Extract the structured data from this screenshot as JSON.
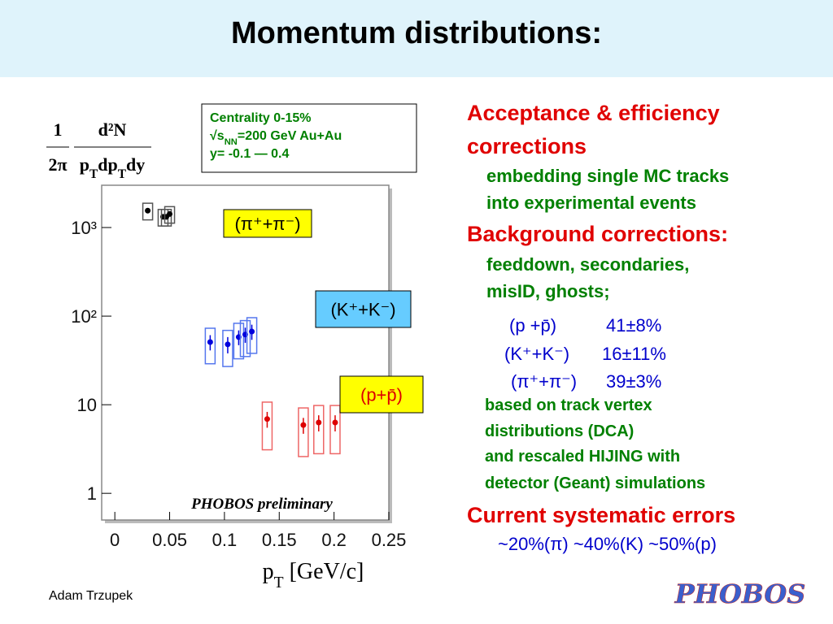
{
  "header": {
    "title": "Momentum distributions:"
  },
  "chart_data": {
    "type": "scatter",
    "ylabel": {
      "left": {
        "num": "1",
        "den": "2π"
      },
      "right": {
        "num": "d²N",
        "den": [
          {
            "text": "p"
          },
          {
            "text": "T",
            "sub": true
          },
          {
            "text": "dp"
          },
          {
            "text": "T",
            "sub": true
          },
          {
            "text": "dy"
          }
        ]
      }
    },
    "xlabel": [
      {
        "text": "p"
      },
      {
        "text": "T",
        "sub": true
      },
      {
        "text": " [GeV/c]"
      }
    ],
    "xlim": [
      -0.012,
      0.25
    ],
    "xticks": [
      0,
      0.05,
      0.1,
      0.15,
      0.2,
      0.25
    ],
    "ylim": [
      0.5,
      3000
    ],
    "log_y": true,
    "yticks": [
      1,
      10,
      {
        "value": 100,
        "label": "10²"
      },
      {
        "value": 1000,
        "label": "10³"
      }
    ],
    "series": [
      {
        "name": "(π⁺+π⁻)",
        "color": "#000000",
        "box_color": "#555555",
        "label_background": "#ffff00",
        "label_color": "#000000",
        "x": [
          0.03,
          0.044,
          0.047,
          0.05
        ],
        "values": [
          1550,
          1320,
          1320,
          1420
        ],
        "sys_errors": [
          330,
          280,
          280,
          300
        ]
      },
      {
        "name": "(K⁺+K⁻)",
        "color": "#0000dd",
        "box_color": "#5577ee",
        "label_background": "#66ccff",
        "label_color": "#000000",
        "x": [
          0.087,
          0.103,
          0.113,
          0.119,
          0.125
        ],
        "values": [
          51,
          48,
          58,
          62,
          67
        ],
        "errors": [
          10,
          10,
          11,
          12,
          13
        ],
        "sys_errors": [
          22,
          21,
          25,
          27,
          29
        ]
      },
      {
        "name": "(p+p̄)",
        "color": "#dd0000",
        "box_color": "#ee6666",
        "label_background": "#ffff00",
        "label_color": "#dd0000",
        "x": [
          0.139,
          0.172,
          0.186,
          0.201
        ],
        "values": [
          6.9,
          5.9,
          6.3,
          6.3
        ],
        "errors": [
          1.4,
          1.2,
          1.3,
          1.3
        ],
        "sys_errors": [
          3.8,
          3.3,
          3.5,
          3.5
        ]
      }
    ],
    "info": [
      [
        {
          "text": "Centrality 0-15%"
        }
      ],
      [
        {
          "text": "√s"
        },
        {
          "text": "NN",
          "sub": true
        },
        {
          "text": "=200 GeV Au+Au"
        }
      ],
      [
        {
          "text": "y= -0.1 — 0.4"
        }
      ]
    ],
    "annotation": "PHOBOS preliminary"
  },
  "panel": {
    "heading1": "Acceptance & efficiency corrections",
    "lines1": [
      "embedding single MC tracks",
      "into experimental events"
    ],
    "heading2": "Background corrections:",
    "lines2": [
      "feeddown, secondaries,",
      "misID, ghosts;"
    ],
    "table": [
      [
        "(p +p̄)",
        "41±8%"
      ],
      [
        "(K⁺+K⁻)",
        "16±11%"
      ],
      [
        "(π⁺+π⁻)",
        "39±3%"
      ]
    ],
    "notes": [
      "based on track vertex",
      "distributions (DCA)",
      "and rescaled HIJING with",
      "detector (Geant) simulations"
    ],
    "heading3": "Current systematic errors",
    "lines3": [
      "~20%(π) ~40%(K) ~50%(p)"
    ]
  },
  "footer": {
    "author": "Adam Trzupek",
    "logo": "PHOBOS"
  }
}
